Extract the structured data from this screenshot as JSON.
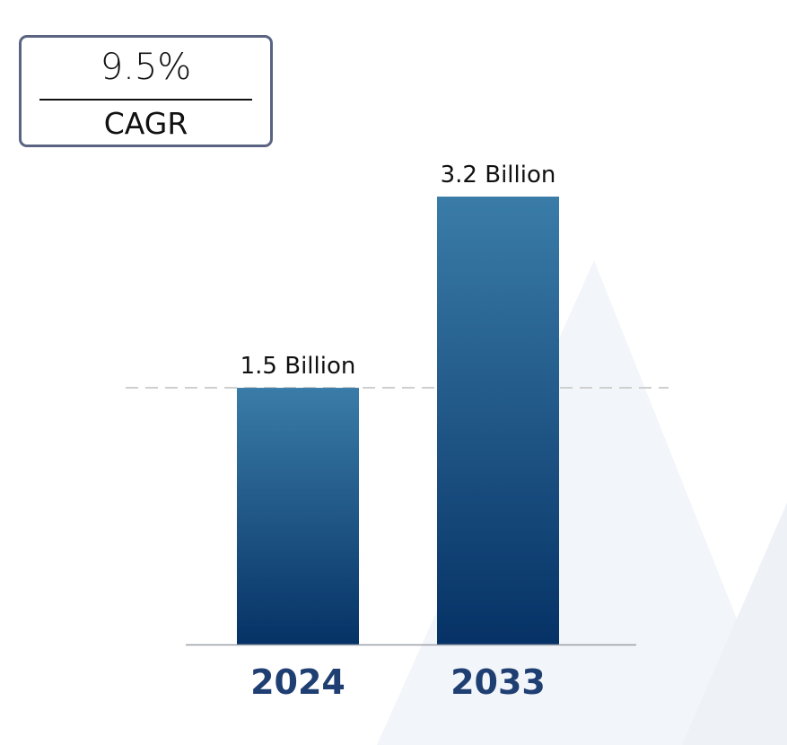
{
  "cagr": {
    "value": "9.5%",
    "label": "CAGR"
  },
  "chart_data": {
    "type": "bar",
    "categories": [
      "2024",
      "2033"
    ],
    "values": [
      1.5,
      3.2
    ],
    "data_labels": [
      "1.5 Billion",
      "3.2 Billion"
    ],
    "unit": "Billion",
    "title": "",
    "xlabel": "",
    "ylabel": "",
    "reference_line": 1.5,
    "colors": {
      "bar_top": "#3a7ca8",
      "bar_bottom": "#063266",
      "year_label": "#1f3f73",
      "watermark": "#f1f4f8"
    }
  }
}
